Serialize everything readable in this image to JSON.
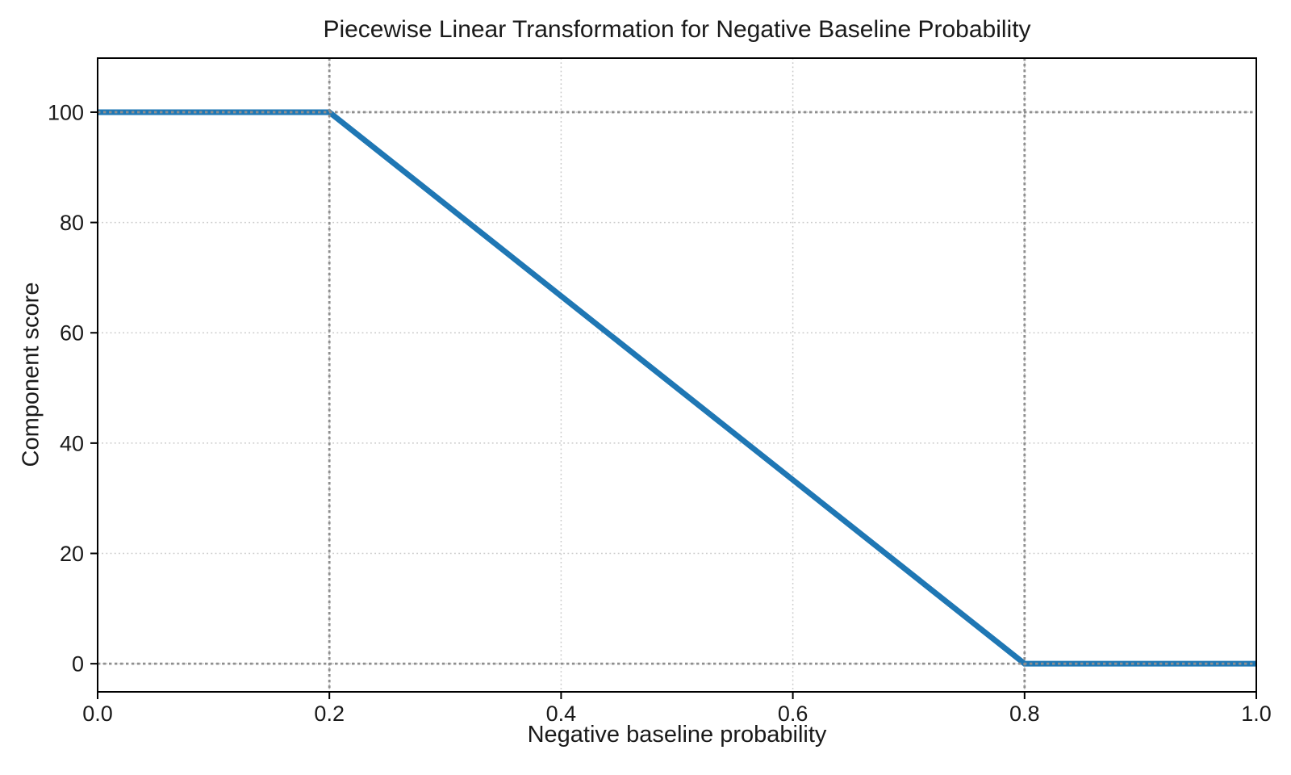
{
  "chart_data": {
    "type": "line",
    "title": "Piecewise Linear Transformation for Negative Baseline Probability",
    "xlabel": "Negative baseline probability",
    "ylabel": "Component score",
    "xlim": [
      0,
      1
    ],
    "ylim": [
      -5.1,
      109.8
    ],
    "grid": true,
    "legend": false,
    "background": "#ffffff",
    "axis_color": "#000000",
    "tick_text_color": "#1a1a1a",
    "grid_color": "#c9c9c9",
    "series": [
      {
        "name": "component-score-curve",
        "color": "#1f77b4",
        "points": [
          [
            0,
            100
          ],
          [
            0.2,
            100
          ],
          [
            0.8,
            0
          ],
          [
            1,
            0
          ]
        ]
      }
    ],
    "reference_lines": {
      "vertical_x": [
        0.2,
        0.8
      ],
      "horizontal_y": [
        0,
        100
      ],
      "style": "dotted",
      "color": "#8f8f8f"
    },
    "x_ticks": {
      "values": [
        0,
        0.2,
        0.4,
        0.6,
        0.8,
        1.0
      ],
      "labels": [
        "0.0",
        "0.2",
        "0.4",
        "0.6",
        "0.8",
        "1.0"
      ]
    },
    "y_ticks": {
      "values": [
        0,
        20,
        40,
        60,
        80,
        100
      ],
      "labels": [
        "0",
        "20",
        "40",
        "60",
        "80",
        "100"
      ]
    }
  }
}
